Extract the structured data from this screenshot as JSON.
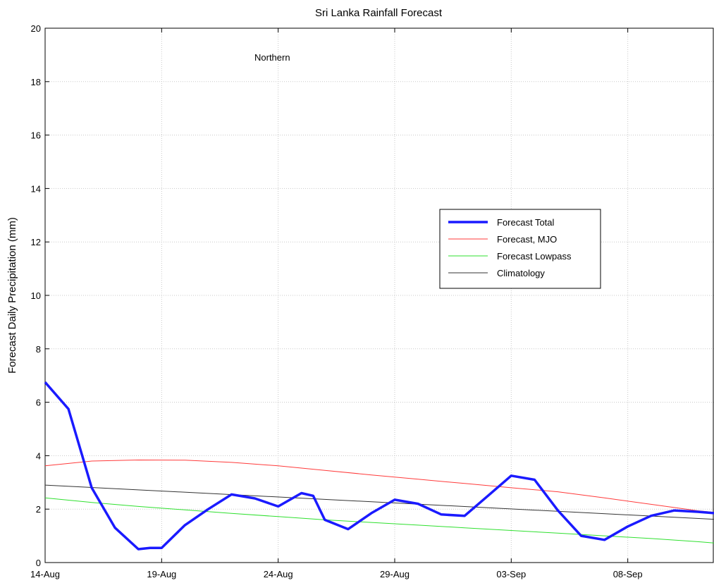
{
  "chart_data": {
    "type": "line",
    "title": "Sri Lanka Rainfall Forecast",
    "xlabel": "",
    "ylabel": "Forecast Daily Precipitation (mm)",
    "annotation": "Northern",
    "x_tick_labels": [
      "14-Aug",
      "19-Aug",
      "24-Aug",
      "29-Aug",
      "03-Sep",
      "08-Sep"
    ],
    "xlim": [
      "2013-08-14",
      "2013-09-11.7"
    ],
    "ylim": [
      0,
      20
    ],
    "y_ticks": [
      0,
      2,
      4,
      6,
      8,
      10,
      12,
      14,
      16,
      18,
      20
    ],
    "grid": true,
    "legend_position": "right-middle",
    "series": [
      {
        "name": "Forecast Total",
        "color": "#1a1aff",
        "x": [
          "2013-08-14",
          "2013-08-15",
          "2013-08-16",
          "2013-08-17",
          "2013-08-18",
          "2013-08-18.5",
          "2013-08-19",
          "2013-08-20",
          "2013-08-21",
          "2013-08-22",
          "2013-08-23",
          "2013-08-24",
          "2013-08-25",
          "2013-08-25.5",
          "2013-08-26",
          "2013-08-27",
          "2013-08-28",
          "2013-08-29",
          "2013-08-30",
          "2013-08-31",
          "2013-09-01",
          "2013-09-02",
          "2013-09-03",
          "2013-09-04",
          "2013-09-05",
          "2013-09-06",
          "2013-09-07",
          "2013-09-08",
          "2013-09-09",
          "2013-09-10",
          "2013-09-11",
          "2013-09-11.7"
        ],
        "values": [
          6.75,
          5.75,
          2.8,
          1.3,
          0.5,
          0.55,
          0.55,
          1.4,
          2.0,
          2.55,
          2.4,
          2.1,
          2.6,
          2.5,
          1.6,
          1.25,
          1.85,
          2.35,
          2.2,
          1.8,
          1.75,
          2.5,
          3.25,
          3.1,
          1.95,
          1.0,
          0.85,
          1.35,
          1.75,
          1.95,
          1.9,
          1.85
        ]
      },
      {
        "name": "Forecast, MJO",
        "color": "#ff3b3b",
        "x": [
          "2013-08-14",
          "2013-08-16",
          "2013-08-18",
          "2013-08-20",
          "2013-08-22",
          "2013-08-24",
          "2013-08-26",
          "2013-08-28",
          "2013-08-30",
          "2013-09-01",
          "2013-09-03",
          "2013-09-05",
          "2013-09-07",
          "2013-09-09",
          "2013-09-11",
          "2013-09-11.7"
        ],
        "values": [
          3.62,
          3.8,
          3.84,
          3.83,
          3.75,
          3.62,
          3.45,
          3.28,
          3.12,
          2.96,
          2.8,
          2.65,
          2.42,
          2.18,
          1.94,
          1.88
        ]
      },
      {
        "name": "Forecast Lowpass",
        "color": "#2fe02f",
        "x": [
          "2013-08-14",
          "2013-08-16",
          "2013-08-18",
          "2013-08-20",
          "2013-08-22",
          "2013-08-24",
          "2013-08-26",
          "2013-08-28",
          "2013-08-30",
          "2013-09-01",
          "2013-09-03",
          "2013-09-05",
          "2013-09-07",
          "2013-09-09",
          "2013-09-11",
          "2013-09-11.7"
        ],
        "values": [
          2.42,
          2.25,
          2.1,
          1.97,
          1.84,
          1.72,
          1.6,
          1.5,
          1.4,
          1.3,
          1.2,
          1.1,
          1.0,
          0.9,
          0.78,
          0.73
        ]
      },
      {
        "name": "Climatology",
        "color": "#333333",
        "x": [
          "2013-08-14",
          "2013-09-11.7"
        ],
        "values": [
          2.9,
          1.62
        ]
      }
    ]
  }
}
